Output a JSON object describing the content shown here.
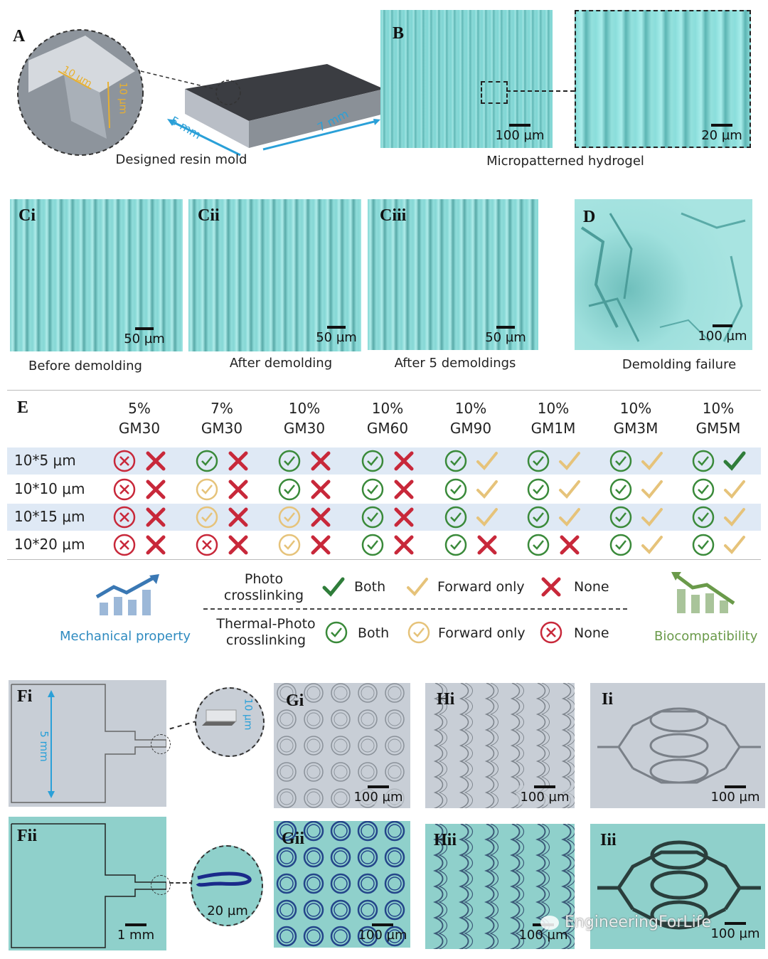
{
  "panels": {
    "A": {
      "label": "A",
      "caption": "Designed resin mold",
      "dim1": "10 µm",
      "dim2": "10 µm",
      "dim_w": "5 mm",
      "dim_l": "7 mm"
    },
    "B": {
      "label": "B",
      "caption": "Micropatterned hydrogel",
      "scale1": "100 µm",
      "scale2": "20 µm"
    },
    "Ci": {
      "label": "Ci",
      "caption": "Before demolding",
      "scale": "50 µm"
    },
    "Cii": {
      "label": "Cii",
      "caption": "After  demolding",
      "scale": "50 µm"
    },
    "Ciii": {
      "label": "Ciii",
      "caption": "After 5 demoldings",
      "scale": "50 µm"
    },
    "D": {
      "label": "D",
      "caption": "Demolding failure",
      "scale": "100 µm"
    },
    "Fi": {
      "label": "Fi",
      "dim_len": "5 mm",
      "dim_h": "10 µm"
    },
    "Fii": {
      "label": "Fii",
      "scale": "1 mm",
      "zoom_scale": "20 µm"
    },
    "Gi": {
      "label": "Gi",
      "scale": "100 µm"
    },
    "Gii": {
      "label": "Gii",
      "scale": "100 µm"
    },
    "Hi": {
      "label": "Hi",
      "scale": "100 µm"
    },
    "Hii": {
      "label": "Hii",
      "scale": "100 µm"
    },
    "Ii": {
      "label": "Ii",
      "scale": "100 µm"
    },
    "Iii": {
      "label": "Iii",
      "scale": "100 µm"
    }
  },
  "table_E": {
    "label": "E",
    "columns": [
      {
        "pct": "5%",
        "name": "GM30"
      },
      {
        "pct": "7%",
        "name": "GM30"
      },
      {
        "pct": "10%",
        "name": "GM30"
      },
      {
        "pct": "10%",
        "name": "GM60"
      },
      {
        "pct": "10%",
        "name": "GM90"
      },
      {
        "pct": "10%",
        "name": "GM1M"
      },
      {
        "pct": "10%",
        "name": "GM3M"
      },
      {
        "pct": "10%",
        "name": "GM5M"
      }
    ],
    "rows": [
      {
        "label": "10*5 μm",
        "thermal": [
          "none",
          "both",
          "both",
          "both",
          "both",
          "both",
          "both",
          "both"
        ],
        "photo": [
          "none",
          "none",
          "none",
          "none",
          "forward",
          "forward",
          "forward",
          "both"
        ]
      },
      {
        "label": "10*10 μm",
        "thermal": [
          "none",
          "forward",
          "both",
          "both",
          "both",
          "both",
          "both",
          "both"
        ],
        "photo": [
          "none",
          "none",
          "none",
          "none",
          "forward",
          "forward",
          "forward",
          "forward"
        ]
      },
      {
        "label": "10*15 μm",
        "thermal": [
          "none",
          "forward",
          "forward",
          "both",
          "both",
          "both",
          "both",
          "both"
        ],
        "photo": [
          "none",
          "none",
          "none",
          "none",
          "forward",
          "forward",
          "forward",
          "forward"
        ]
      },
      {
        "label": "10*20 μm",
        "thermal": [
          "none",
          "none",
          "forward",
          "both",
          "both",
          "both",
          "both",
          "both"
        ],
        "photo": [
          "none",
          "none",
          "none",
          "none",
          "none",
          "none",
          "forward",
          "forward"
        ]
      }
    ]
  },
  "legend": {
    "photo_label": "Photo\ncrosslinking",
    "thermal_label": "Thermal-Photo\ncrosslinking",
    "both": "Both",
    "forward": "Forward only",
    "none": "None",
    "mechanical": "Mechanical property",
    "biocompat": "Biocompatibility"
  },
  "watermark": "EngineeringForLife",
  "colors": {
    "both": "#3a8a3a",
    "forward": "#e6c37a",
    "none": "#c8283a",
    "mech": "#3a78b4",
    "bio": "#6a9a4a"
  }
}
